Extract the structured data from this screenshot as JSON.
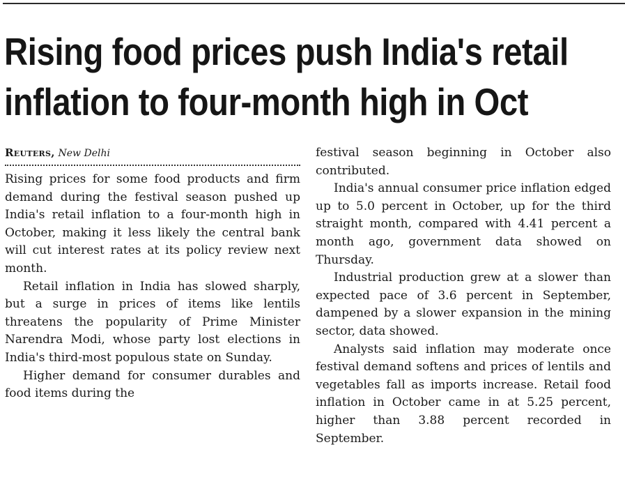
{
  "headline": {
    "line1": "Rising food prices push India's retail",
    "line2": "inflation to four-month high in Oct"
  },
  "byline": {
    "agency": "Reuters,",
    "place": "New Delhi"
  },
  "paragraphs": [
    "Rising prices for some food products and firm demand during the festival season pushed up India's retail infla­tion to a four-month high in October, making it less likely the central bank will cut interest rates at its policy review next month.",
    "Retail inflation in India has slowed sharply, but a surge in prices of items like lentils threatens the popularity of Prime Minister Narendra Modi, whose party lost elections in India's third-most populous state on Sunday.",
    "Higher demand for consumer durables and food items during the",
    "festival season beginning in October also contributed.",
    "India's annual consumer price inflation edged up to 5.0 percent in October, up for the third straight month, compared with 4.41 percent a month ago, government data showed on Thursday.",
    "Industrial production grew at a slower than expected pace of 3.6 percent in September, dampened by a slower expan­sion in the mining sector, data showed.",
    "Analysts said inflation may moderate once festival demand softens and prices of lentils and vegetables fall as imports increase. Retail food inflation in October came in at 5.25 percent, higher than 3.88 percent recorded in September."
  ]
}
